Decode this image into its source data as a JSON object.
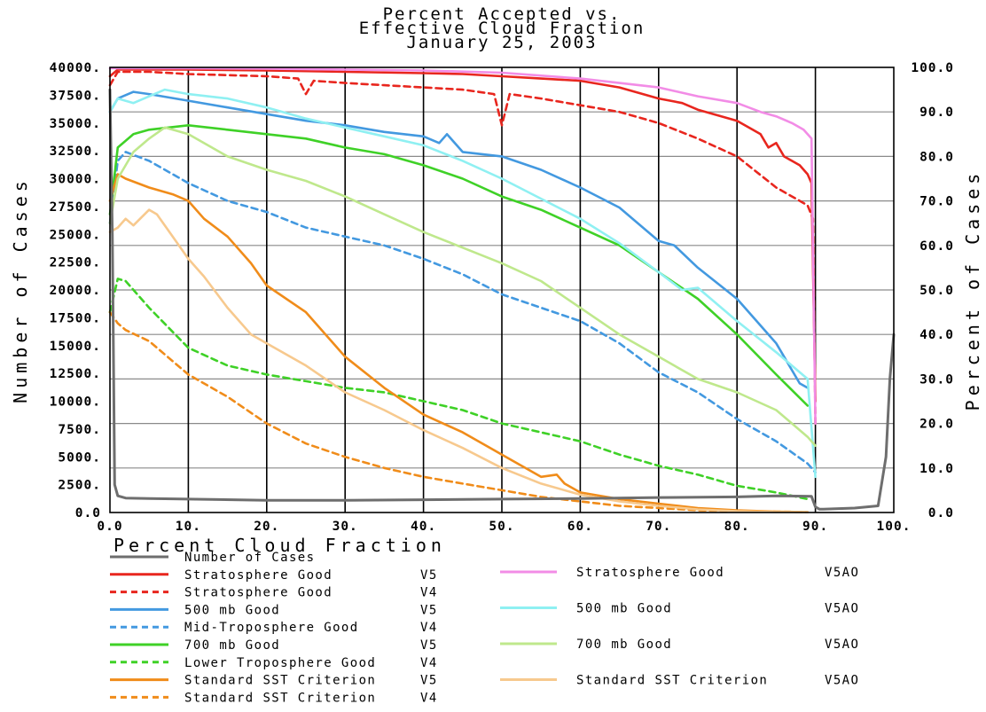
{
  "chart_data": {
    "type": "line",
    "title_lines": [
      "Percent Accepted vs.",
      "Effective Cloud Fraction",
      "January 25, 2003"
    ],
    "xlabel": "Percent Cloud Fraction",
    "ylabel_left": "Number of Cases",
    "ylabel_right": "Percent of Cases",
    "xlim": [
      0,
      100
    ],
    "ylim_left": [
      0,
      40000
    ],
    "ylim_right": [
      0,
      100
    ],
    "x_ticks": [
      "0.0",
      "10.",
      "20.",
      "30.",
      "40.",
      "50.",
      "60.",
      "70.",
      "80.",
      "90.",
      "100."
    ],
    "y_left_ticks": [
      "0.0",
      "2500.",
      "5000.",
      "7500.",
      "10000.",
      "12500.",
      "15000.",
      "17500.",
      "20000.",
      "22500.",
      "25000.",
      "27500.",
      "30000.",
      "32500.",
      "35000.",
      "37500.",
      "40000."
    ],
    "y_right_ticks": [
      "0.0",
      "10.0",
      "20.0",
      "30.0",
      "40.0",
      "50.0",
      "60.0",
      "70.0",
      "80.0",
      "90.0",
      "100.0"
    ],
    "grid": true,
    "legend_position": "bottom",
    "series": [
      {
        "name": "Number of Cases",
        "version": "",
        "axis": "left",
        "color": "#6e6e6e",
        "dash": false,
        "legend_col": 0,
        "x": [
          0,
          0.3,
          0.6,
          1,
          2,
          5,
          10,
          20,
          30,
          40,
          50,
          60,
          70,
          80,
          85,
          89.5,
          90,
          90.5,
          91,
          95,
          98,
          99,
          99.5,
          100
        ],
        "y": [
          38000,
          25000,
          2500,
          1500,
          1300,
          1250,
          1200,
          1100,
          1100,
          1150,
          1200,
          1250,
          1350,
          1400,
          1500,
          1450,
          500,
          300,
          300,
          400,
          600,
          5000,
          12000,
          16000
        ]
      },
      {
        "name": "Stratosphere Good",
        "version": "V5",
        "axis": "right",
        "color": "#e8261e",
        "dash": false,
        "legend_col": 0,
        "x": [
          0,
          1,
          5,
          10,
          20,
          30,
          40,
          45,
          50,
          55,
          60,
          65,
          70,
          73,
          75,
          77,
          80,
          82,
          83,
          84,
          85,
          86,
          87,
          88,
          89,
          89.5,
          90
        ],
        "y": [
          98,
          99.5,
          99.5,
          99.5,
          99.3,
          99,
          98.7,
          98.5,
          98,
          97.5,
          97,
          95.5,
          93,
          92,
          90.5,
          89.5,
          88,
          86,
          85,
          82,
          83,
          80,
          79,
          78,
          76,
          74,
          25
        ]
      },
      {
        "name": "Stratosphere Good",
        "version": "V4",
        "axis": "right",
        "color": "#e8261e",
        "dash": true,
        "legend_col": 0,
        "x": [
          0,
          1,
          5,
          10,
          20,
          24,
          25,
          26,
          30,
          35,
          40,
          45,
          49,
          50,
          51,
          55,
          60,
          65,
          70,
          75,
          80,
          85,
          89,
          89.7,
          90
        ],
        "y": [
          96,
          99,
          99,
          98.5,
          98,
          97.5,
          94,
          97,
          96.5,
          96,
          95.5,
          95,
          94,
          87,
          94,
          93,
          91.5,
          90,
          87.5,
          84,
          80,
          73,
          69,
          66,
          20
        ]
      },
      {
        "name": "500 mb Good",
        "version": "V5",
        "axis": "right",
        "color": "#4399e0",
        "dash": false,
        "legend_col": 0,
        "x": [
          0,
          1,
          3,
          5,
          10,
          15,
          20,
          25,
          30,
          35,
          40,
          42,
          43,
          45,
          50,
          55,
          60,
          65,
          70,
          72,
          75,
          80,
          85,
          88,
          89
        ],
        "y": [
          90,
          93,
          94.5,
          94,
          92.5,
          91,
          89.5,
          88,
          87,
          85.5,
          84.5,
          83,
          85,
          81,
          80,
          77,
          73,
          68.5,
          61,
          60,
          55,
          48,
          38,
          29,
          28
        ]
      },
      {
        "name": "Mid-Troposphere Good",
        "version": "V4",
        "axis": "right",
        "color": "#4399e0",
        "dash": true,
        "legend_col": 0,
        "x": [
          0,
          1,
          2,
          5,
          10,
          15,
          20,
          25,
          30,
          35,
          40,
          45,
          50,
          55,
          60,
          65,
          70,
          75,
          80,
          85,
          89,
          90
        ],
        "y": [
          65,
          79,
          81,
          79,
          74,
          70,
          67.5,
          64,
          62,
          60,
          57,
          53.5,
          49,
          46,
          43,
          38,
          31.5,
          27,
          21,
          16,
          11,
          9
        ]
      },
      {
        "name": "700 mb Good",
        "version": "V5",
        "axis": "right",
        "color": "#3fd127",
        "dash": false,
        "legend_col": 0,
        "x": [
          0,
          1,
          3,
          5,
          10,
          15,
          20,
          25,
          30,
          35,
          40,
          45,
          50,
          55,
          60,
          65,
          70,
          75,
          80,
          85,
          89
        ],
        "y": [
          67,
          82,
          85,
          86,
          87,
          86,
          85,
          84,
          82,
          80.5,
          78,
          75,
          71,
          68,
          64,
          60,
          54,
          48,
          40,
          31,
          24
        ]
      },
      {
        "name": "Lower Troposphere Good",
        "version": "V4",
        "axis": "right",
        "color": "#3fd127",
        "dash": true,
        "legend_col": 0,
        "x": [
          0,
          1,
          2,
          5,
          10,
          15,
          20,
          25,
          30,
          35,
          40,
          45,
          50,
          55,
          60,
          65,
          70,
          75,
          80,
          85,
          89
        ],
        "y": [
          45,
          52.5,
          52,
          46,
          37,
          33,
          31,
          29.5,
          28,
          27,
          25,
          23,
          20,
          18,
          16,
          13,
          10.5,
          8.5,
          6,
          4.5,
          3
        ]
      },
      {
        "name": "Standard SST Criterion",
        "version": "V5",
        "axis": "right",
        "color": "#f08c1a",
        "dash": false,
        "legend_col": 0,
        "x": [
          0,
          1,
          2,
          5,
          8,
          10,
          12,
          15,
          18,
          20,
          25,
          30,
          35,
          40,
          45,
          50,
          55,
          57,
          58,
          60,
          65,
          70,
          75,
          80,
          85,
          89
        ],
        "y": [
          70,
          76,
          75,
          73,
          71.5,
          70,
          66,
          62,
          56,
          51,
          45,
          35,
          28,
          22,
          18,
          13,
          8,
          8.5,
          6.5,
          4.5,
          3,
          2,
          1,
          0.5,
          0.2,
          0.1
        ]
      },
      {
        "name": "Standard SST Criterion",
        "version": "V4",
        "axis": "right",
        "color": "#f08c1a",
        "dash": true,
        "legend_col": 0,
        "x": [
          0,
          1,
          2,
          5,
          10,
          15,
          20,
          25,
          30,
          35,
          40,
          45,
          50,
          55,
          60,
          65,
          70,
          75,
          80,
          85,
          89
        ],
        "y": [
          45,
          42.5,
          41,
          38.5,
          31,
          26,
          20,
          15.5,
          12.5,
          10,
          8,
          6.5,
          5,
          3.5,
          2.5,
          1.5,
          1,
          0.5,
          0.3,
          0.2,
          0.1
        ]
      },
      {
        "name": "Stratosphere Good",
        "version": "V5AO",
        "axis": "right",
        "color": "#f28ce6",
        "dash": false,
        "legend_col": 1,
        "x": [
          0,
          5,
          10,
          20,
          30,
          40,
          50,
          60,
          65,
          70,
          75,
          80,
          83,
          85,
          87,
          88.5,
          89.5,
          90
        ],
        "y": [
          99.8,
          99.8,
          99.8,
          99.7,
          99.5,
          99.3,
          98.8,
          97.5,
          96.5,
          95.5,
          93.5,
          92,
          90,
          89,
          87.5,
          86,
          84,
          20
        ]
      },
      {
        "name": "500 mb Good",
        "version": "V5AO",
        "axis": "right",
        "color": "#8ff0f2",
        "dash": false,
        "legend_col": 1,
        "x": [
          0,
          1,
          3,
          7,
          10,
          15,
          20,
          25,
          30,
          35,
          40,
          45,
          50,
          55,
          60,
          65,
          70,
          73,
          75,
          80,
          85,
          89,
          90
        ],
        "y": [
          90,
          93,
          92,
          95,
          94,
          93,
          91,
          88.5,
          86.5,
          84.5,
          82.5,
          79,
          75,
          70.5,
          66,
          60.5,
          54,
          50,
          50.5,
          43,
          36,
          30,
          8
        ]
      },
      {
        "name": "700 mb Good",
        "version": "V5AO",
        "axis": "right",
        "color": "#bfe88c",
        "dash": false,
        "legend_col": 1,
        "x": [
          0,
          1,
          3,
          5,
          7,
          10,
          15,
          20,
          25,
          30,
          35,
          40,
          45,
          50,
          55,
          60,
          65,
          70,
          75,
          80,
          85,
          89,
          90
        ],
        "y": [
          65,
          75,
          81,
          84,
          86.5,
          85,
          80,
          77,
          74.5,
          71,
          67,
          63,
          59.5,
          56,
          52,
          46,
          40,
          35,
          30,
          27,
          23,
          17,
          15
        ]
      },
      {
        "name": "Standard SST Criterion",
        "version": "V5AO",
        "axis": "right",
        "color": "#f7c98e",
        "dash": false,
        "legend_col": 1,
        "x": [
          0,
          1,
          2,
          3,
          5,
          6,
          8,
          10,
          12,
          15,
          18,
          20,
          25,
          30,
          35,
          40,
          45,
          50,
          55,
          60,
          65,
          70,
          75,
          80,
          85,
          89
        ],
        "y": [
          63,
          64,
          66,
          64.5,
          68,
          67,
          62,
          57,
          53,
          46,
          40,
          38,
          33,
          27,
          23,
          18.5,
          14.5,
          10,
          6.5,
          4,
          2.5,
          1.5,
          0.7,
          0.3,
          0.1,
          0.1
        ]
      }
    ]
  }
}
